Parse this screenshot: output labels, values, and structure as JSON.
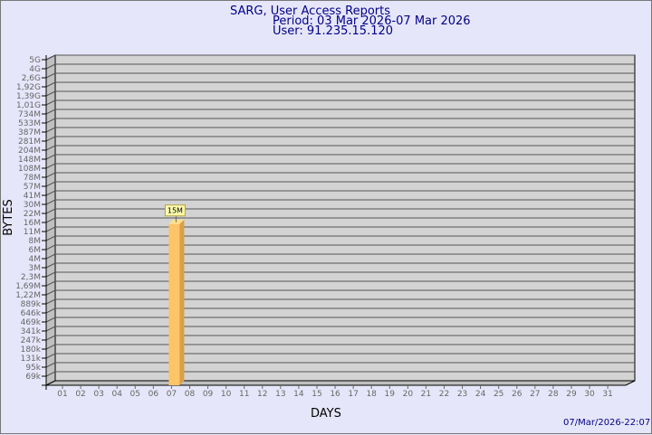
{
  "header": {
    "title": "SARG, User Access Reports",
    "period": "Period: 03 Mar 2026-07 Mar 2026",
    "user": "User: 91.235.15.120"
  },
  "footer": {
    "timestamp": "07/Mar/2026-22:07"
  },
  "chart_data": {
    "type": "bar",
    "xlabel": "DAYS",
    "ylabel": "BYTES",
    "y_scale": "log",
    "grid": true,
    "y_ticks": [
      "69k",
      "95k",
      "131k",
      "180k",
      "247k",
      "341k",
      "469k",
      "646k",
      "889k",
      "1,22M",
      "1,69M",
      "2,3M",
      "3M",
      "4M",
      "6M",
      "8M",
      "11M",
      "16M",
      "22M",
      "30M",
      "41M",
      "57M",
      "78M",
      "108M",
      "148M",
      "204M",
      "281M",
      "387M",
      "533M",
      "734M",
      "1,01G",
      "1,39G",
      "1,92G",
      "2,6G",
      "4G",
      "5G"
    ],
    "categories": [
      "01",
      "02",
      "03",
      "04",
      "05",
      "06",
      "07",
      "08",
      "09",
      "10",
      "11",
      "12",
      "13",
      "14",
      "15",
      "16",
      "17",
      "18",
      "19",
      "20",
      "21",
      "22",
      "23",
      "24",
      "25",
      "26",
      "27",
      "28",
      "29",
      "30",
      "31"
    ],
    "bars": [
      {
        "day": "07",
        "value_bytes": 15000000,
        "label": "15M"
      }
    ],
    "colors": {
      "bar_front": "#fdc468",
      "bar_side": "#d9a048",
      "plot_bg": "#d3d3d3",
      "wall": "#c0c0c0",
      "label_bg": "#ffffb0"
    }
  }
}
